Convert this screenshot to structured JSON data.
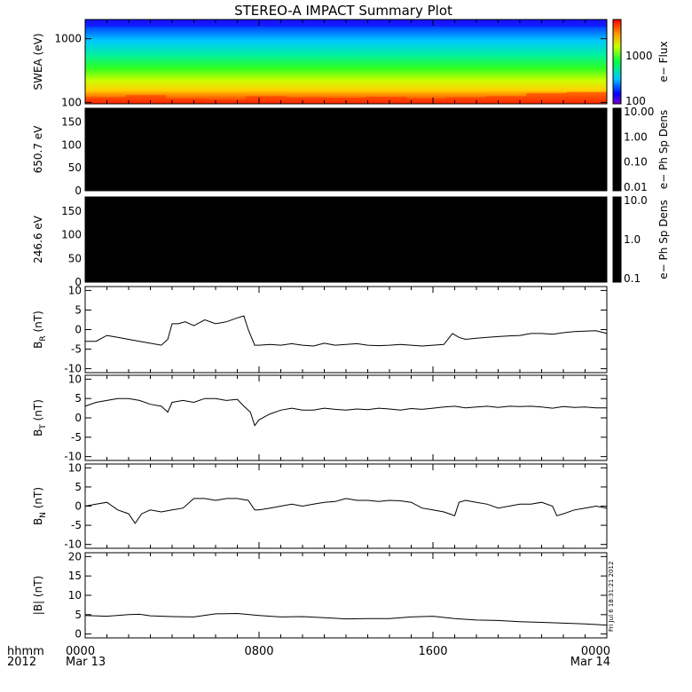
{
  "title": "STEREO-A IMPACT Summary Plot",
  "stamp": "Fri Jul  6 18:31:21 2012",
  "time_axis": {
    "row_label_top": "hhmm",
    "row_label_bottom": "2012",
    "ticks": [
      {
        "hours": 0,
        "top": "0000",
        "bottom": "Mar 13"
      },
      {
        "hours": 8,
        "top": "0800",
        "bottom": ""
      },
      {
        "hours": 16,
        "top": "1600",
        "bottom": ""
      },
      {
        "hours": 24,
        "top": "0000",
        "bottom": "Mar 14"
      }
    ]
  },
  "chart_data": [
    {
      "type": "heatmap",
      "ylabel": "SWEA (eV)",
      "yscale": "log",
      "ylim": [
        95,
        2000
      ],
      "yticks": [
        "100",
        "1000"
      ],
      "xlim_hours": [
        0,
        24
      ],
      "colorbar": {
        "label": "e− Flux",
        "scale": "log",
        "ticks": [
          "100",
          "1000"
        ],
        "colormap": "rainbow"
      },
      "description_of_energy_bands": "red at ~100 eV, yellow ~150 eV, green ~300-500 eV, cyan ~800 eV, blue above 1000 eV",
      "red_band_top_eV": [
        120,
        130,
        115,
        110,
        125,
        120,
        118,
        122,
        115,
        120,
        125,
        140,
        145
      ]
    },
    {
      "type": "heatmap",
      "ylabel": "650.7 eV",
      "ylim": [
        0,
        180
      ],
      "yticks": [
        "0",
        "50",
        "100",
        "150"
      ],
      "fill": "#000000",
      "colorbar": {
        "label": "e− Ph Sp Dens",
        "scale": "log",
        "ticks": [
          "10.00",
          "1.00",
          "0.10",
          "0.01"
        ]
      }
    },
    {
      "type": "heatmap",
      "ylabel": "246.6 eV",
      "ylim": [
        0,
        180
      ],
      "yticks": [
        "0",
        "50",
        "100",
        "150"
      ],
      "fill": "#000000",
      "colorbar": {
        "label": "e− Ph Sp Dens",
        "scale": "log",
        "ticks": [
          "10.0",
          "1.0",
          "0.1"
        ]
      }
    },
    {
      "type": "line",
      "ylabel": "B",
      "ylabel_sub": "R",
      "ylabel_unit": " (nT)",
      "ylim": [
        -11,
        11
      ],
      "yticks": [
        10,
        5,
        0,
        -5,
        -10
      ],
      "x_hours": [
        0,
        0.5,
        1,
        1.5,
        2,
        2.5,
        3,
        3.5,
        3.8,
        4,
        4.3,
        4.6,
        5,
        5.5,
        6,
        6.5,
        7,
        7.3,
        7.5,
        7.8,
        8,
        8.5,
        9,
        9.5,
        10,
        10.5,
        11,
        11.5,
        12,
        12.5,
        13,
        13.5,
        14,
        14.5,
        15,
        15.5,
        16,
        16.5,
        16.9,
        17.2,
        17.5,
        18,
        18.5,
        19,
        19.5,
        20,
        20.5,
        21,
        21.5,
        22,
        22.5,
        23,
        23.5,
        24
      ],
      "values": [
        -3,
        -3,
        -1.5,
        -2,
        -2.5,
        -3,
        -3.5,
        -4,
        -2.5,
        1.5,
        1.5,
        2,
        1,
        2.5,
        1.5,
        2,
        3,
        3.5,
        0,
        -4,
        -4,
        -3.8,
        -4,
        -3.6,
        -4,
        -4.2,
        -3.5,
        -4,
        -3.8,
        -3.6,
        -4,
        -4.1,
        -4,
        -3.8,
        -4,
        -4.2,
        -4,
        -3.8,
        -1,
        -2,
        -2.5,
        -2.2,
        -2,
        -1.8,
        -1.6,
        -1.5,
        -1,
        -1,
        -1.2,
        -0.8,
        -0.5,
        -0.4,
        -0.3,
        -1
      ]
    },
    {
      "type": "line",
      "ylabel": "B",
      "ylabel_sub": "T",
      "ylabel_unit": " (nT)",
      "ylim": [
        -11,
        11
      ],
      "yticks": [
        10,
        5,
        0,
        -5,
        -10
      ],
      "x_hours": [
        0,
        0.5,
        1,
        1.5,
        2,
        2.5,
        3,
        3.5,
        3.8,
        4,
        4.5,
        5,
        5.5,
        6,
        6.5,
        7,
        7.3,
        7.6,
        7.8,
        8,
        8.5,
        9,
        9.5,
        10,
        10.5,
        11,
        11.5,
        12,
        12.5,
        13,
        13.5,
        14,
        14.5,
        15,
        15.5,
        16,
        16.5,
        17,
        17.5,
        18,
        18.5,
        19,
        19.5,
        20,
        20.5,
        21,
        21.5,
        22,
        22.5,
        23,
        23.5,
        24
      ],
      "values": [
        3,
        4,
        4.5,
        5,
        5,
        4.5,
        3.5,
        3,
        1.5,
        4,
        4.5,
        4,
        5,
        5,
        4.5,
        4.8,
        3,
        1.5,
        -2,
        -0.5,
        1,
        2,
        2.5,
        2,
        2,
        2.5,
        2.2,
        2,
        2.3,
        2.1,
        2.5,
        2.3,
        2,
        2.4,
        2.2,
        2.5,
        2.8,
        3,
        2.6,
        2.8,
        3,
        2.7,
        3,
        2.9,
        3,
        2.8,
        2.5,
        2.9,
        2.7,
        2.8,
        2.6,
        2.6
      ]
    },
    {
      "type": "line",
      "ylabel": "B",
      "ylabel_sub": "N",
      "ylabel_unit": " (nT)",
      "ylim": [
        -11,
        11
      ],
      "yticks": [
        10,
        5,
        0,
        -5,
        -10
      ],
      "x_hours": [
        0,
        0.5,
        1,
        1.5,
        2,
        2.3,
        2.6,
        3,
        3.5,
        4,
        4.5,
        5,
        5.5,
        6,
        6.5,
        7,
        7.5,
        7.8,
        8,
        8.5,
        9,
        9.5,
        10,
        10.5,
        11,
        11.5,
        12,
        12.5,
        13,
        13.5,
        14,
        14.5,
        15,
        15.5,
        16,
        16.5,
        17,
        17.2,
        17.5,
        18,
        18.5,
        19,
        19.5,
        20,
        20.5,
        21,
        21.5,
        21.7,
        22,
        22.5,
        23,
        23.5,
        24
      ],
      "values": [
        0,
        0.5,
        1,
        -1,
        -2,
        -4.5,
        -2,
        -1,
        -1.5,
        -1,
        -0.5,
        2,
        2,
        1.5,
        2,
        2,
        1.5,
        -1,
        -1,
        -0.5,
        0,
        0.5,
        0,
        0.5,
        1,
        1.2,
        2,
        1.5,
        1.5,
        1.2,
        1.5,
        1.4,
        1,
        -0.5,
        -1,
        -1.5,
        -2.5,
        1,
        1.5,
        1,
        0.5,
        -0.5,
        0,
        0.5,
        0.5,
        1,
        0,
        -2.5,
        -2,
        -1,
        -0.5,
        0,
        -0.5
      ]
    },
    {
      "type": "line",
      "ylabel": "|B| (nT)",
      "ylim": [
        -1,
        21
      ],
      "yticks": [
        20,
        15,
        10,
        5,
        0
      ],
      "x_hours": [
        0,
        1,
        2,
        2.5,
        3,
        4,
        5,
        6,
        7,
        8,
        9,
        10,
        11,
        12,
        13,
        14,
        15,
        16,
        17,
        18,
        19,
        20,
        21,
        22,
        23,
        24
      ],
      "values": [
        4.8,
        4.6,
        5,
        5.1,
        4.7,
        4.5,
        4.4,
        5.2,
        5.3,
        4.8,
        4.4,
        4.5,
        4.2,
        3.9,
        4.0,
        4.0,
        4.4,
        4.6,
        4.0,
        3.6,
        3.5,
        3.2,
        3.0,
        2.8,
        2.6,
        2.3
      ]
    }
  ]
}
